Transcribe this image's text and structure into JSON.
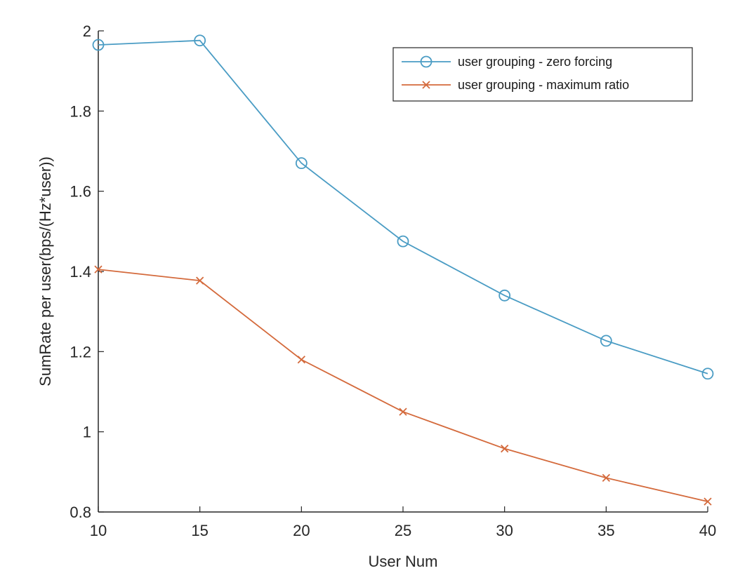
{
  "chart_data": {
    "type": "line",
    "title": "",
    "xlabel": "User Num",
    "ylabel": "SumRate per user(bps/(Hz*user))",
    "xlim": [
      10,
      40
    ],
    "ylim": [
      0.8,
      2
    ],
    "xticks": [
      10,
      15,
      20,
      25,
      30,
      35,
      40
    ],
    "yticks": [
      0.8,
      1,
      1.2,
      1.4,
      1.6,
      1.8,
      2
    ],
    "ytick_labels": [
      "0.8",
      "1",
      "1.2",
      "1.4",
      "1.6",
      "1.8",
      "2"
    ],
    "grid": false,
    "legend_position": "top-right",
    "x": [
      10,
      15,
      20,
      25,
      30,
      35,
      40
    ],
    "series": [
      {
        "name": "user grouping - zero forcing",
        "color": "#4a9cc4",
        "marker": "circle",
        "values": [
          1.965,
          1.976,
          1.67,
          1.475,
          1.34,
          1.227,
          1.145
        ]
      },
      {
        "name": "user grouping - maximum ratio",
        "color": "#d46a3c",
        "marker": "x",
        "values": [
          1.405,
          1.377,
          1.18,
          1.05,
          0.958,
          0.885,
          0.826
        ]
      }
    ]
  }
}
